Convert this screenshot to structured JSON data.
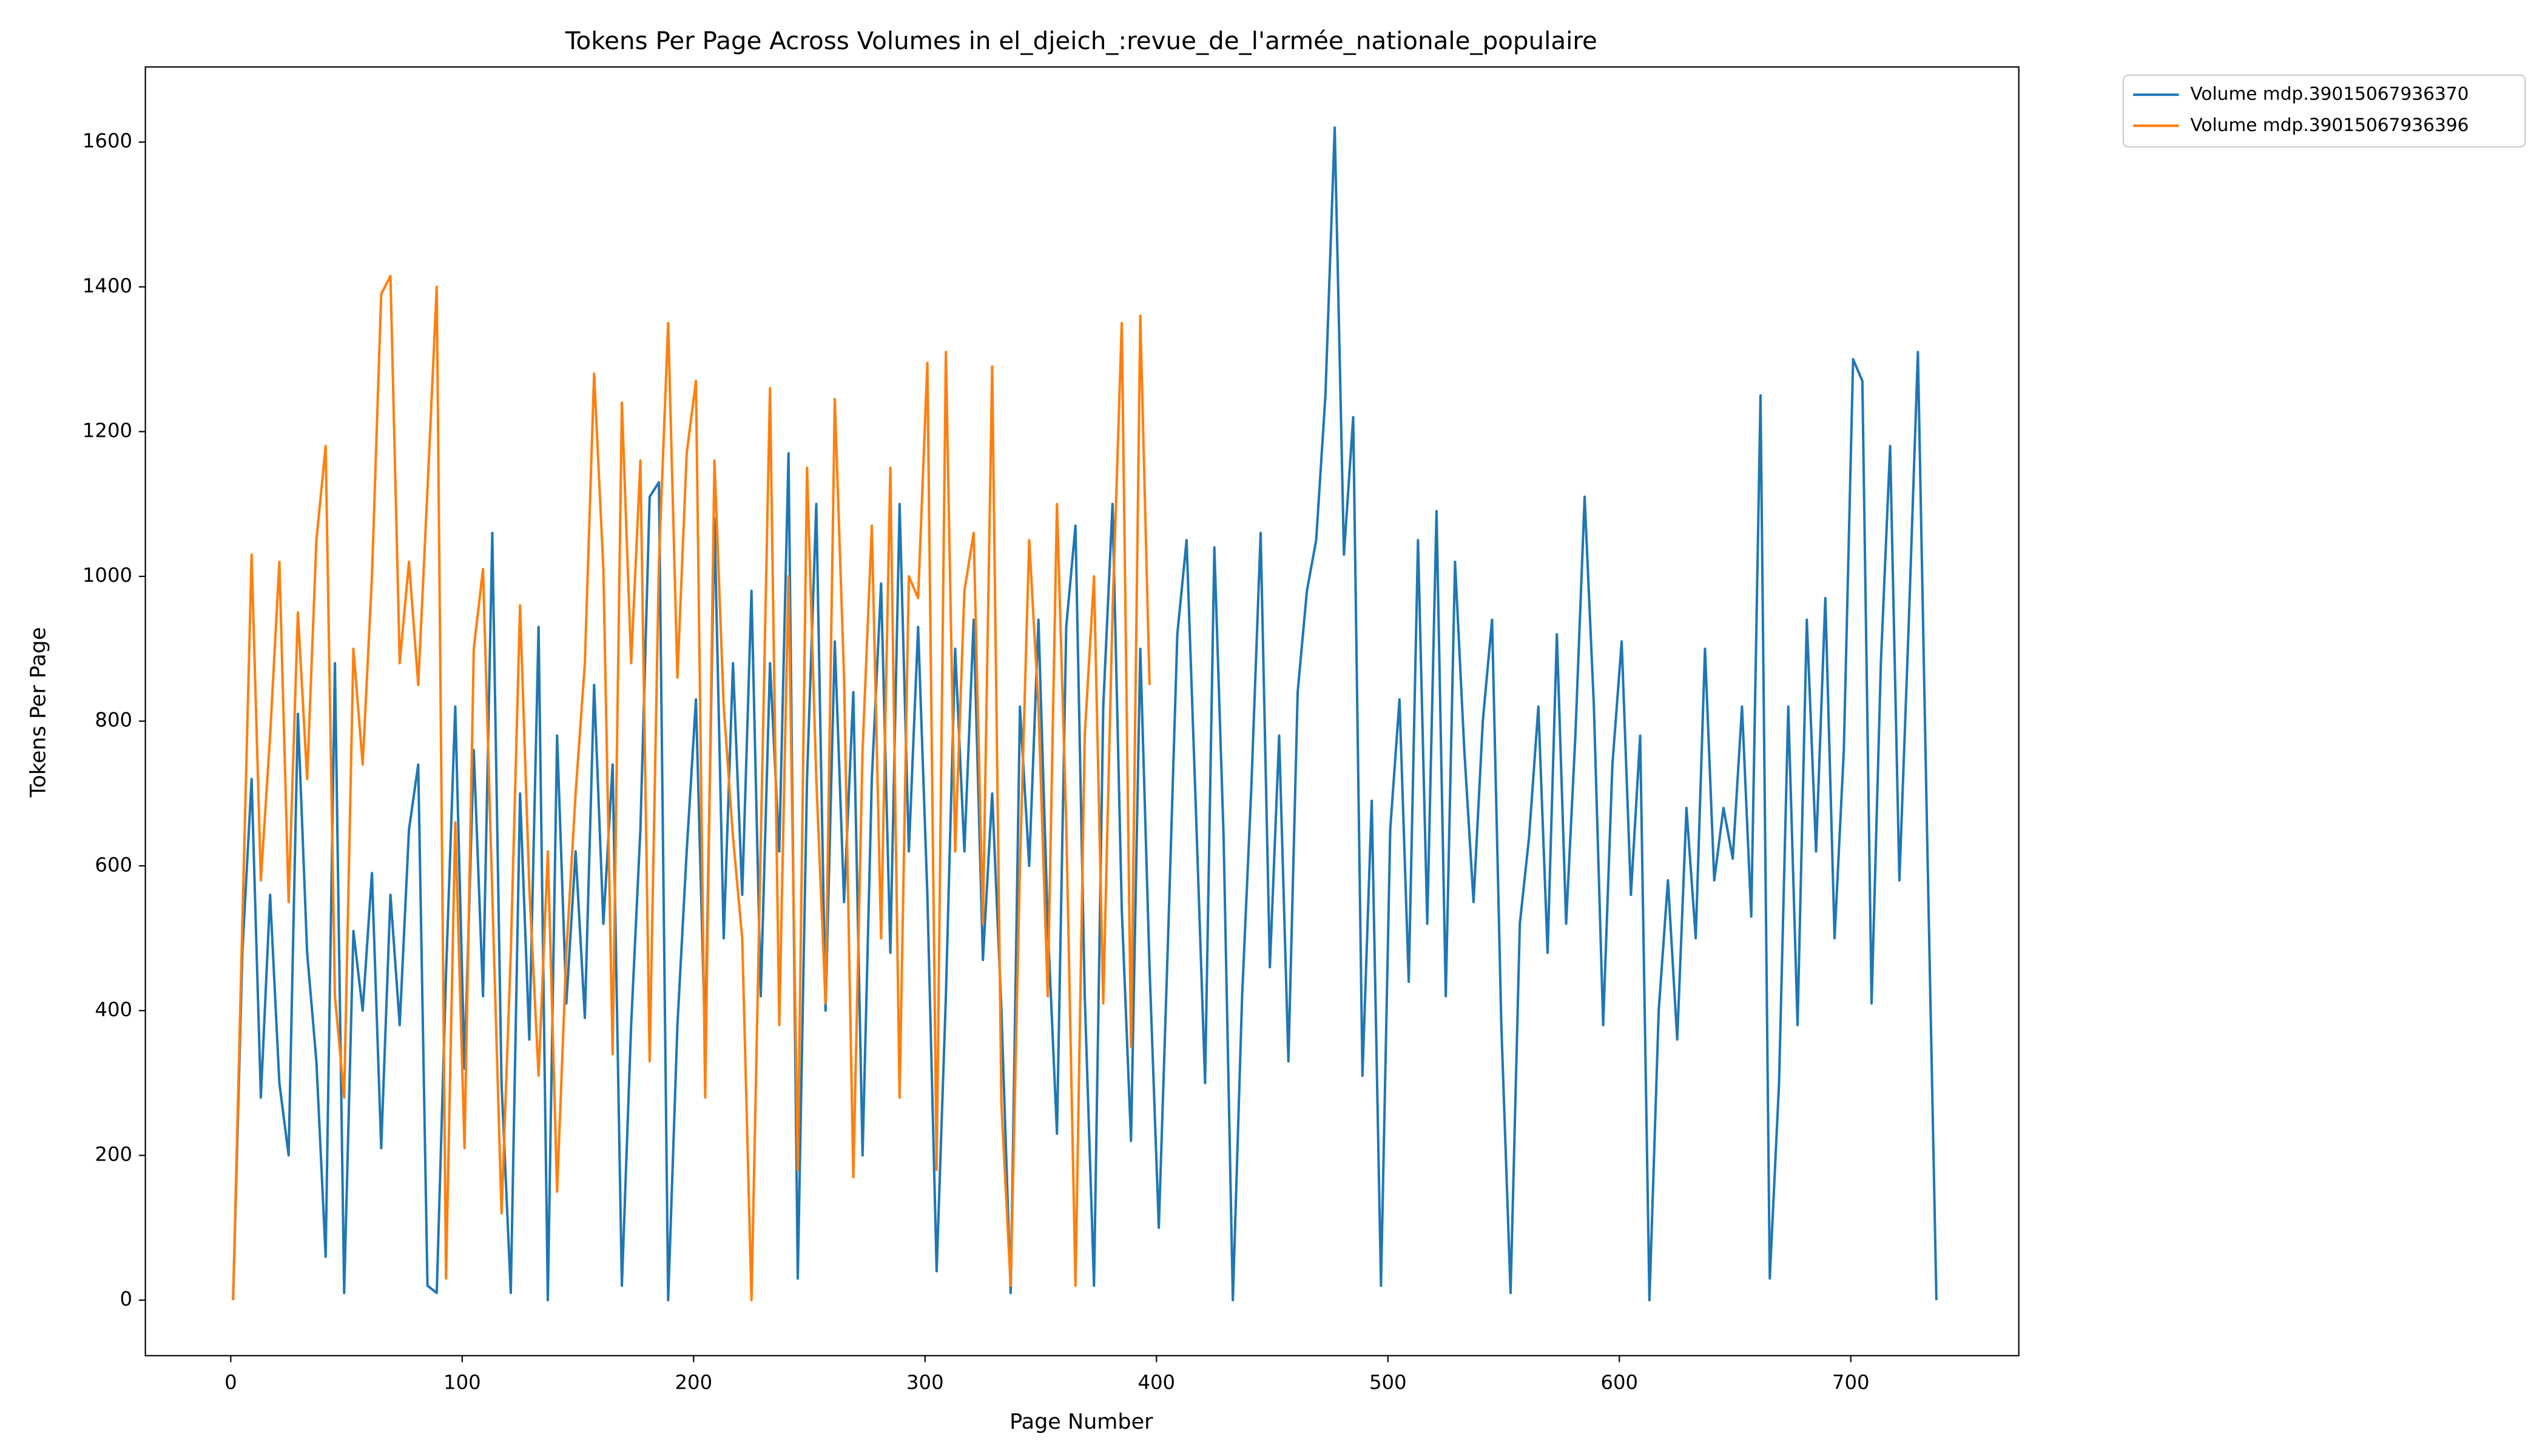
{
  "chart_data": {
    "type": "line",
    "title": "Tokens Per Page Across Volumes in el_djeich_:revue_de_l'armée_nationale_populaire",
    "xlabel": "Page Number",
    "ylabel": "Tokens Per Page",
    "xlim": [
      -36.9,
      772.6
    ],
    "ylim": [
      -76.7,
      1703.8
    ],
    "xticks": [
      0,
      100,
      200,
      300,
      400,
      500,
      600,
      700
    ],
    "yticks": [
      0,
      200,
      400,
      600,
      800,
      1000,
      1200,
      1400,
      1600
    ],
    "grid": false,
    "legend": "outside upper right",
    "series": [
      {
        "name": "Volume mdp.39015067936370",
        "color": "#1f77b4",
        "x": [
          1,
          5,
          9,
          13,
          17,
          21,
          25,
          29,
          33,
          37,
          41,
          45,
          49,
          53,
          57,
          61,
          65,
          69,
          73,
          77,
          81,
          85,
          89,
          93,
          97,
          101,
          105,
          109,
          113,
          117,
          121,
          125,
          129,
          133,
          137,
          141,
          145,
          149,
          153,
          157,
          161,
          165,
          169,
          173,
          177,
          181,
          185,
          189,
          193,
          197,
          201,
          205,
          209,
          213,
          217,
          221,
          225,
          229,
          233,
          237,
          241,
          245,
          249,
          253,
          257,
          261,
          265,
          269,
          273,
          277,
          281,
          285,
          289,
          293,
          297,
          301,
          305,
          309,
          313,
          317,
          321,
          325,
          329,
          333,
          337,
          341,
          345,
          349,
          353,
          357,
          361,
          365,
          369,
          373,
          377,
          381,
          385,
          389,
          393,
          397,
          401,
          405,
          409,
          413,
          417,
          421,
          425,
          429,
          433,
          437,
          441,
          445,
          449,
          453,
          457,
          461,
          465,
          469,
          473,
          477,
          481,
          485,
          489,
          493,
          497,
          501,
          505,
          509,
          513,
          517,
          521,
          525,
          529,
          533,
          537,
          541,
          545,
          549,
          553,
          557,
          561,
          565,
          569,
          573,
          577,
          581,
          585,
          589,
          593,
          597,
          601,
          605,
          609,
          613,
          617,
          621,
          625,
          629,
          633,
          637,
          641,
          645,
          649,
          653,
          657,
          661,
          665,
          669,
          673,
          677,
          681,
          685,
          689,
          693,
          697,
          701,
          705,
          709,
          713,
          717,
          721,
          725,
          729,
          733,
          737
        ],
        "values": [
          0,
          480,
          720,
          280,
          560,
          300,
          200,
          810,
          480,
          330,
          60,
          880,
          10,
          510,
          400,
          590,
          210,
          560,
          380,
          650,
          740,
          20,
          10,
          450,
          820,
          320,
          760,
          420,
          1060,
          300,
          10,
          700,
          360,
          930,
          0,
          780,
          410,
          620,
          390,
          850,
          520,
          740,
          20,
          380,
          650,
          1110,
          1130,
          0,
          380,
          620,
          830,
          350,
          1080,
          500,
          880,
          560,
          980,
          420,
          880,
          620,
          1170,
          30,
          720,
          1100,
          400,
          910,
          550,
          840,
          200,
          720,
          990,
          480,
          1100,
          620,
          930,
          560,
          40,
          420,
          900,
          620,
          940,
          470,
          700,
          400,
          10,
          820,
          600,
          940,
          520,
          230,
          930,
          1070,
          420,
          20,
          820,
          1100,
          540,
          220,
          900,
          460,
          100,
          500,
          920,
          1050,
          680,
          300,
          1040,
          640,
          0,
          420,
          710,
          1060,
          460,
          780,
          330,
          840,
          980,
          1050,
          1250,
          1620,
          1030,
          1220,
          310,
          690,
          20,
          650,
          830,
          440,
          1050,
          520,
          1090,
          420,
          1020,
          760,
          550,
          800,
          940,
          380,
          10,
          520,
          640,
          820,
          480,
          920,
          520,
          780,
          1110,
          820,
          380,
          740,
          910,
          560,
          780,
          0,
          400,
          580,
          360,
          680,
          500,
          900,
          580,
          680,
          610,
          820,
          530,
          1250,
          30,
          300,
          820,
          380,
          940,
          620,
          970,
          500,
          760,
          1300,
          1270,
          410,
          880,
          1180,
          580,
          930,
          1310,
          640,
          0
        ]
      },
      {
        "name": "Volume mdp.39015067936396",
        "color": "#ff7f0e",
        "x": [
          1,
          5,
          9,
          13,
          17,
          21,
          25,
          29,
          33,
          37,
          41,
          45,
          49,
          53,
          57,
          61,
          65,
          69,
          73,
          77,
          81,
          85,
          89,
          93,
          97,
          101,
          105,
          109,
          113,
          117,
          121,
          125,
          129,
          133,
          137,
          141,
          145,
          149,
          153,
          157,
          161,
          165,
          169,
          173,
          177,
          181,
          185,
          189,
          193,
          197,
          201,
          205,
          209,
          213,
          217,
          221,
          225,
          229,
          233,
          237,
          241,
          245,
          249,
          253,
          257,
          261,
          265,
          269,
          273,
          277,
          281,
          285,
          289,
          293,
          297,
          301,
          305,
          309,
          313,
          317,
          321,
          325,
          329,
          333,
          337,
          341,
          345,
          349,
          353,
          357,
          361,
          365,
          369,
          373,
          377,
          381,
          385,
          389,
          393,
          397
        ],
        "values": [
          0,
          520,
          1030,
          580,
          780,
          1020,
          550,
          950,
          720,
          1050,
          1180,
          420,
          280,
          900,
          740,
          1000,
          1390,
          1415,
          880,
          1020,
          850,
          1120,
          1400,
          30,
          660,
          210,
          900,
          1010,
          560,
          120,
          480,
          960,
          570,
          310,
          620,
          150,
          480,
          700,
          880,
          1280,
          1010,
          340,
          1240,
          880,
          1160,
          330,
          1020,
          1350,
          860,
          1170,
          1270,
          280,
          1160,
          820,
          640,
          500,
          0,
          630,
          1260,
          380,
          1000,
          180,
          1150,
          720,
          410,
          1245,
          860,
          170,
          760,
          1070,
          500,
          1150,
          280,
          1000,
          970,
          1295,
          180,
          1310,
          620,
          980,
          1060,
          520,
          1290,
          270,
          20,
          600,
          1050,
          820,
          420,
          1100,
          660,
          20,
          780,
          1000,
          410,
          950,
          1350,
          350,
          1360,
          850
        ]
      }
    ]
  }
}
